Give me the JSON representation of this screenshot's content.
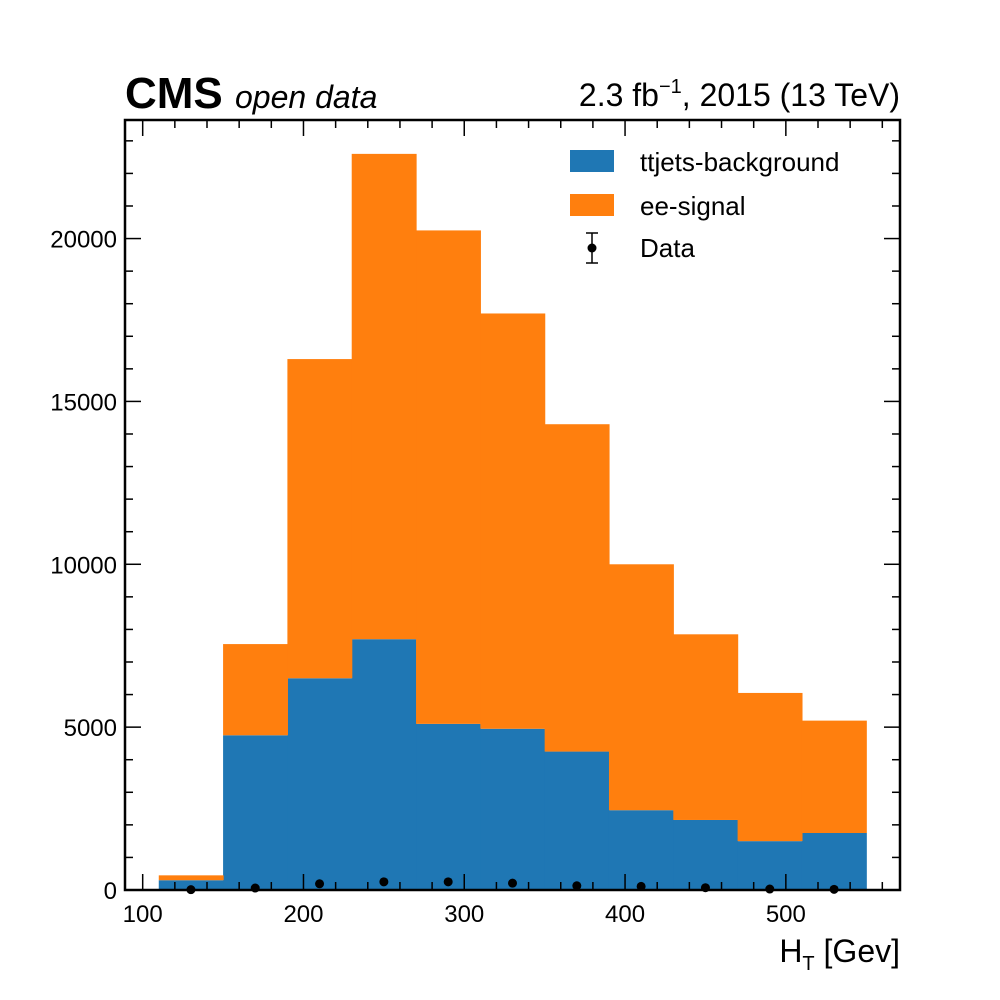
{
  "header": {
    "experiment": "CMS",
    "subtitle": "open data",
    "lumi_prefix": "2.3 fb",
    "lumi_exponent": "−1",
    "lumi_suffix": ", 2015 (13 TeV)"
  },
  "chart_data": {
    "type": "bar",
    "stacked": true,
    "bin_edges": [
      110,
      150,
      190,
      230,
      270,
      310,
      350,
      390,
      430,
      470,
      510,
      550
    ],
    "series": [
      {
        "name": "ttjets-background",
        "color": "#1f77b4",
        "values": [
          300,
          4750,
          6500,
          7700,
          5100,
          4950,
          4250,
          2450,
          2150,
          1500,
          1750
        ]
      },
      {
        "name": "ee-signal",
        "color": "#ff7f0e",
        "values": [
          150,
          2800,
          9800,
          14900,
          15150,
          12750,
          10050,
          7550,
          5700,
          4550,
          3450
        ]
      }
    ],
    "data_points": {
      "name": "Data",
      "color": "#000000",
      "x": [
        130,
        170,
        210,
        250,
        290,
        330,
        370,
        410,
        450,
        490,
        530
      ],
      "y": [
        10,
        60,
        190,
        250,
        250,
        210,
        130,
        110,
        70,
        30,
        20
      ]
    },
    "xlabel_main": "H",
    "xlabel_sub": "T",
    "xlabel_unit": " [Gev]",
    "ylabel": "",
    "xlim": [
      89,
      571
    ],
    "ylim": [
      0,
      23640
    ],
    "x_ticks": [
      100,
      200,
      300,
      400,
      500
    ],
    "y_ticks": [
      0,
      5000,
      10000,
      15000,
      20000
    ],
    "x_tick_labels": [
      "100",
      "200",
      "300",
      "400",
      "500"
    ],
    "y_tick_labels": [
      "0",
      "5000",
      "10000",
      "15000",
      "20000"
    ],
    "legend_position": "top-right",
    "grid": false
  }
}
